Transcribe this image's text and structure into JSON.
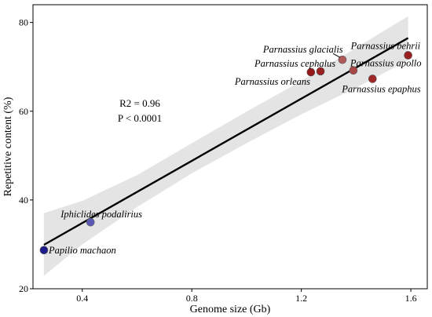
{
  "chart_data": {
    "type": "scatter",
    "title": "",
    "xlabel": "Genome size (Gb)",
    "ylabel": "Repetitive content (%)",
    "xlim": [
      0.22,
      1.66
    ],
    "ylim": [
      20,
      84
    ],
    "xticks": [
      0.4,
      0.8,
      1.2,
      1.6
    ],
    "yticks": [
      20,
      40,
      60,
      80
    ],
    "grid": false,
    "annotations": [
      "R2 = 0.96",
      "P < 0.0001"
    ],
    "regression_line": {
      "x": [
        0.26,
        1.59
      ],
      "y": [
        29.9,
        76.5
      ]
    },
    "confidence_band": {
      "x": [
        0.26,
        0.4,
        0.6,
        0.8,
        1.0,
        1.2,
        1.4,
        1.59
      ],
      "lower": [
        22.9,
        30.0,
        38.4,
        46.0,
        52.8,
        59.3,
        65.3,
        71.5
      ],
      "upper": [
        37.0,
        39.8,
        45.6,
        52.8,
        59.9,
        66.8,
        74.3,
        81.4
      ]
    },
    "points": [
      {
        "name": "Papilio machaon",
        "x": 0.26,
        "y": 28.7,
        "color": "#1c1c8c"
      },
      {
        "name": "Iphiclides podalirius",
        "x": 0.43,
        "y": 35.0,
        "color": "#5b5bb5"
      },
      {
        "name": "Parnassius orleans",
        "x": 1.235,
        "y": 68.8,
        "color": "#971818"
      },
      {
        "name": "Parnassius cephalus",
        "x": 1.27,
        "y": 69.0,
        "color": "#9b2020"
      },
      {
        "name": "Parnassius glacialis",
        "x": 1.35,
        "y": 71.6,
        "color": "#b25a5a"
      },
      {
        "name": "Parnassius apollo",
        "x": 1.39,
        "y": 69.2,
        "color": "#a94545"
      },
      {
        "name": "Parnassius epaphus",
        "x": 1.46,
        "y": 67.3,
        "color": "#a02828"
      },
      {
        "name": "Parnassius behrii",
        "x": 1.59,
        "y": 72.6,
        "color": "#9a2020"
      }
    ]
  }
}
